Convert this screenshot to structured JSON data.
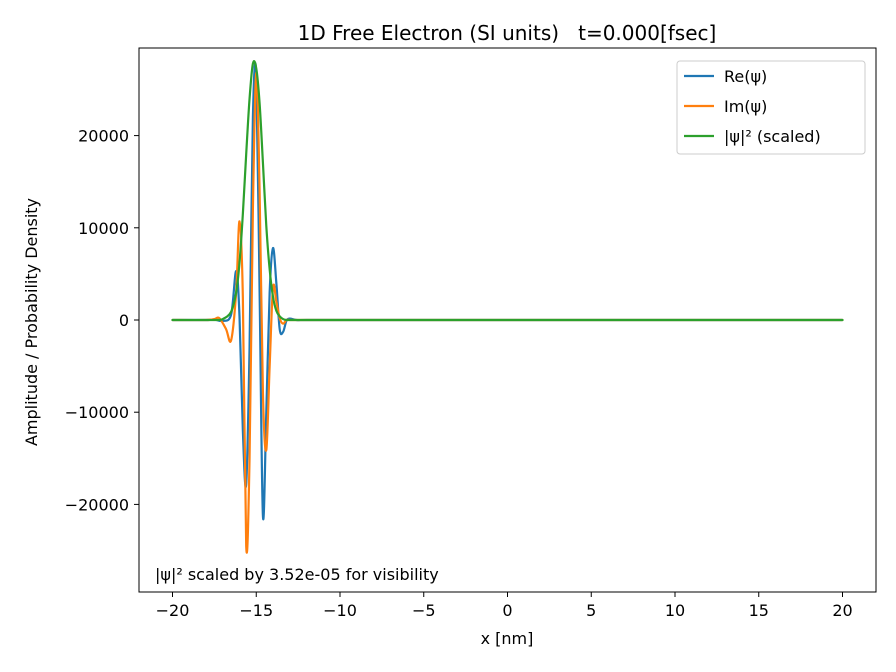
{
  "chart_data": {
    "type": "line",
    "title": "1D Free Electron (SI units)   t=0.000[fsec]",
    "xlabel": "x [nm]",
    "ylabel": "Amplitude / Probability Density",
    "xlim": [
      -22,
      22
    ],
    "ylim": [
      -29500,
      29500
    ],
    "xticks": [
      -20,
      -15,
      -10,
      -5,
      0,
      5,
      10,
      15,
      20
    ],
    "xtick_labels": [
      "−20",
      "−15",
      "−10",
      "−5",
      "0",
      "5",
      "10",
      "15",
      "20"
    ],
    "yticks": [
      -20000,
      -10000,
      0,
      10000,
      20000
    ],
    "ytick_labels": [
      "−20000",
      "−10000",
      "0",
      "10000",
      "20000"
    ],
    "grid": false,
    "legend_position": "top-right",
    "annotation": "|ψ|² scaled by 3.52e-05 for visibility",
    "series": [
      {
        "name": "Re(ψ)",
        "color": "#1f77b4",
        "x": [
          -20,
          -18,
          -17.5,
          -17,
          -16.5,
          -16.2,
          -16.0,
          -15.8,
          -15.6,
          -15.4,
          -15.2,
          -15.0,
          -14.8,
          -14.6,
          -14.4,
          -14.2,
          -14.0,
          -13.8,
          -13.6,
          -13.4,
          -13.2,
          -13.0,
          -12.6,
          -12,
          -10,
          0,
          10,
          20
        ],
        "y": [
          0,
          0,
          50,
          -100,
          600,
          5300,
          400,
          -12000,
          -17800,
          -3000,
          22000,
          26500,
          3000,
          -21300,
          -10000,
          3000,
          7800,
          4000,
          -1000,
          -1300,
          -100,
          150,
          0,
          0,
          0,
          0,
          0,
          0
        ]
      },
      {
        "name": "Im(ψ)",
        "color": "#ff7f0e",
        "x": [
          -20,
          -18,
          -17.5,
          -17.2,
          -16.8,
          -16.5,
          -16.2,
          -16.0,
          -15.8,
          -15.6,
          -15.4,
          -15.2,
          -15.0,
          -14.8,
          -14.6,
          -14.4,
          -14.2,
          -14.0,
          -13.8,
          -13.6,
          -13.4,
          -13.2,
          -13.0,
          -12.6,
          -12,
          -10,
          0,
          10,
          20
        ],
        "y": [
          0,
          0,
          100,
          200,
          -1000,
          -2200,
          3000,
          10700,
          2500,
          -24500,
          -15000,
          12000,
          26800,
          14000,
          -8000,
          -14100,
          -5000,
          3500,
          2000,
          200,
          -400,
          0,
          0,
          0,
          0,
          0,
          0,
          0,
          0
        ]
      },
      {
        "name": "|ψ|² (scaled)",
        "color": "#2ca02c",
        "x": [
          -20,
          -18,
          -17.5,
          -17.0,
          -16.5,
          -16.2,
          -16.0,
          -15.8,
          -15.6,
          -15.4,
          -15.2,
          -15.0,
          -14.8,
          -14.6,
          -14.4,
          -14.2,
          -14.0,
          -13.8,
          -13.6,
          -13.4,
          -13.2,
          -13.0,
          -12.6,
          -12,
          -10,
          0,
          10,
          20
        ],
        "y": [
          0,
          0,
          0,
          100,
          900,
          3000,
          6200,
          11500,
          18000,
          24000,
          27800,
          27300,
          23500,
          17000,
          10200,
          5500,
          2500,
          1000,
          400,
          100,
          0,
          0,
          0,
          0,
          0,
          0,
          0,
          0
        ]
      }
    ]
  }
}
